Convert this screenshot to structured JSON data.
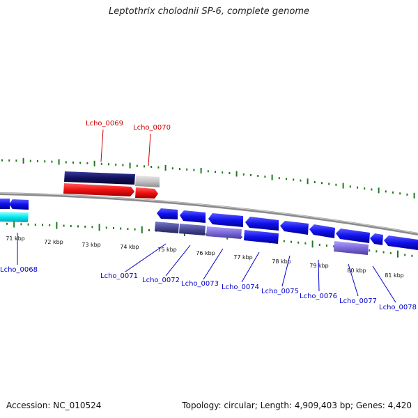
{
  "title": "Leptothrix cholodnii SP-6, complete genome",
  "footer": {
    "accession": "Accession: NC_010524",
    "summary": "Topology: circular; Length: 4,909,403 bp; Genes: 4,420"
  },
  "colors": {
    "forward_label": "#cc0000",
    "reverse_label": "#0000cc",
    "tick": "#1f7a1f",
    "backbone": "#888888"
  },
  "scale_labels": [
    "71 kbp",
    "72 kbp",
    "73 kbp",
    "74 kbp",
    "75 kbp",
    "76 kbp",
    "77 kbp",
    "78 kbp",
    "79 kbp",
    "80 kbp",
    "81 kbp"
  ],
  "genes": [
    {
      "id": "Lcho_0068",
      "strand": "reverse"
    },
    {
      "id": "Lcho_0069",
      "strand": "forward"
    },
    {
      "id": "Lcho_0070",
      "strand": "forward"
    },
    {
      "id": "Lcho_0071",
      "strand": "reverse"
    },
    {
      "id": "Lcho_0072",
      "strand": "reverse"
    },
    {
      "id": "Lcho_0073",
      "strand": "reverse"
    },
    {
      "id": "Lcho_0074",
      "strand": "reverse"
    },
    {
      "id": "Lcho_0075",
      "strand": "reverse"
    },
    {
      "id": "Lcho_0076",
      "strand": "reverse"
    },
    {
      "id": "Lcho_0077",
      "strand": "reverse"
    },
    {
      "id": "Lcho_0078",
      "strand": "reverse"
    }
  ]
}
